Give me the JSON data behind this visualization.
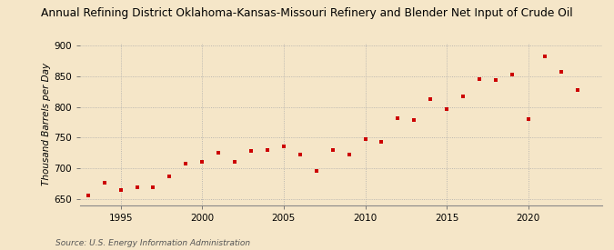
{
  "title": "Annual Refining District Oklahoma-Kansas-Missouri Refinery and Blender Net Input of Crude Oil",
  "ylabel": "Thousand Barrels per Day",
  "source": "Source: U.S. Energy Information Administration",
  "background_color": "#f5e6c8",
  "plot_bg_color": "#f5e6c8",
  "marker_color": "#cc0000",
  "years": [
    1993,
    1994,
    1995,
    1996,
    1997,
    1998,
    1999,
    2000,
    2001,
    2002,
    2003,
    2004,
    2005,
    2006,
    2007,
    2008,
    2009,
    2010,
    2011,
    2012,
    2013,
    2014,
    2015,
    2016,
    2017,
    2018,
    2019,
    2020,
    2021,
    2022,
    2023
  ],
  "values": [
    655,
    677,
    665,
    669,
    669,
    686,
    708,
    711,
    725,
    710,
    728,
    730,
    736,
    722,
    696,
    730,
    722,
    748,
    743,
    782,
    778,
    812,
    797,
    817,
    845,
    844,
    853,
    780,
    882,
    857,
    828
  ],
  "ylim": [
    640,
    905
  ],
  "yticks": [
    650,
    700,
    750,
    800,
    850,
    900
  ],
  "xlim": [
    1992.5,
    2024.5
  ],
  "xticks": [
    1995,
    2000,
    2005,
    2010,
    2015,
    2020
  ],
  "title_fontsize": 8.8,
  "axis_fontsize": 7.5,
  "source_fontsize": 6.5,
  "ylabel_fontsize": 7.5
}
